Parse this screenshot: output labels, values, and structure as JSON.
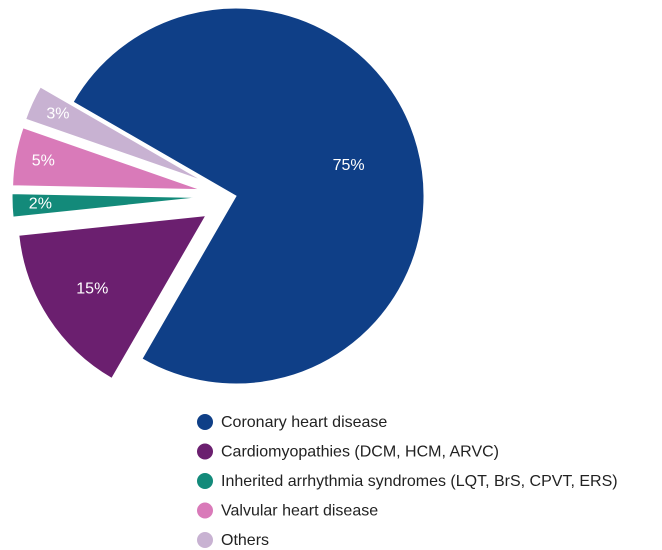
{
  "chart_data": {
    "type": "pie",
    "categories": [
      "Coronary heart disease",
      "Cardiomyopathies (DCM, HCM, ARVC)",
      "Inherited arrhythmia syndromes (LQT, BrS, CPVT, ERS)",
      "Valvular heart disease",
      "Others"
    ],
    "values": [
      75,
      15,
      2,
      5,
      3
    ],
    "value_labels": [
      "75%",
      "15%",
      "2%",
      "5%",
      "3%"
    ],
    "colors": [
      "#0f3f87",
      "#6b1f6f",
      "#138a7a",
      "#d97ab9",
      "#c8b2d2"
    ],
    "legend": "bottom"
  }
}
